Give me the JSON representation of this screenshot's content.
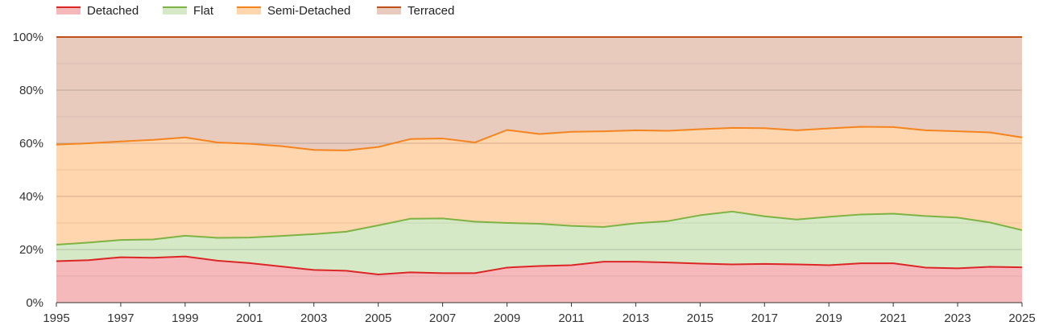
{
  "chart_data": {
    "type": "area",
    "stacked": true,
    "percent": true,
    "x": [
      1995,
      1996,
      1997,
      1998,
      1999,
      2000,
      2001,
      2002,
      2003,
      2004,
      2005,
      2006,
      2007,
      2008,
      2009,
      2010,
      2011,
      2012,
      2013,
      2014,
      2015,
      2016,
      2017,
      2018,
      2019,
      2020,
      2021,
      2022,
      2023,
      2024,
      2025
    ],
    "x_ticks": [
      "1995",
      "1997",
      "1999",
      "2001",
      "2003",
      "2005",
      "2007",
      "2009",
      "2011",
      "2013",
      "2015",
      "2017",
      "2019",
      "2021",
      "2023",
      "2025"
    ],
    "y_ticks": [
      "0%",
      "20%",
      "40%",
      "60%",
      "80%",
      "100%"
    ],
    "ylim": [
      0,
      100
    ],
    "grid": true,
    "legend_position": "top-left",
    "series": [
      {
        "name": "Detached",
        "line_color": "#dc2626",
        "fill_color": "#f5b9bb",
        "values": [
          15.6,
          16.0,
          17.1,
          16.9,
          17.4,
          15.8,
          14.9,
          13.6,
          12.3,
          12.0,
          10.6,
          11.4,
          11.1,
          11.1,
          13.2,
          13.8,
          14.1,
          15.4,
          15.4,
          15.1,
          14.7,
          14.4,
          14.6,
          14.4,
          14.1,
          14.8,
          14.8,
          13.2,
          12.9,
          13.5,
          13.3
        ]
      },
      {
        "name": "Flat",
        "line_color": "#7cb342",
        "fill_color": "#d6e9c6",
        "values": [
          6.2,
          6.6,
          6.5,
          6.9,
          7.8,
          8.6,
          9.6,
          11.5,
          13.5,
          14.7,
          18.5,
          20.2,
          20.6,
          19.4,
          16.8,
          15.9,
          14.8,
          13.1,
          14.5,
          15.6,
          18.2,
          19.9,
          17.9,
          16.9,
          18.2,
          18.4,
          18.7,
          19.4,
          19.1,
          16.7,
          14.0
        ]
      },
      {
        "name": "Semi-Detached",
        "line_color": "#f5841f",
        "fill_color": "#ffd6ae",
        "values": [
          37.7,
          37.4,
          37.1,
          37.5,
          37.0,
          35.9,
          35.3,
          33.8,
          31.7,
          30.6,
          29.5,
          30.0,
          30.1,
          29.8,
          35.0,
          33.8,
          35.4,
          36.0,
          35.0,
          34.0,
          32.4,
          31.5,
          33.2,
          33.6,
          33.3,
          33.0,
          32.6,
          32.3,
          32.5,
          33.9,
          34.9
        ]
      },
      {
        "name": "Terraced",
        "line_color": "#c0501a",
        "fill_color": "#e8cbbd",
        "values": [
          40.5,
          40.0,
          39.3,
          38.7,
          37.8,
          39.7,
          40.2,
          41.1,
          42.5,
          42.7,
          41.4,
          38.4,
          38.2,
          39.7,
          35.0,
          36.5,
          35.7,
          35.5,
          35.1,
          35.3,
          34.7,
          34.2,
          34.3,
          35.1,
          34.4,
          33.8,
          33.9,
          35.1,
          35.5,
          35.9,
          37.8
        ]
      }
    ]
  }
}
